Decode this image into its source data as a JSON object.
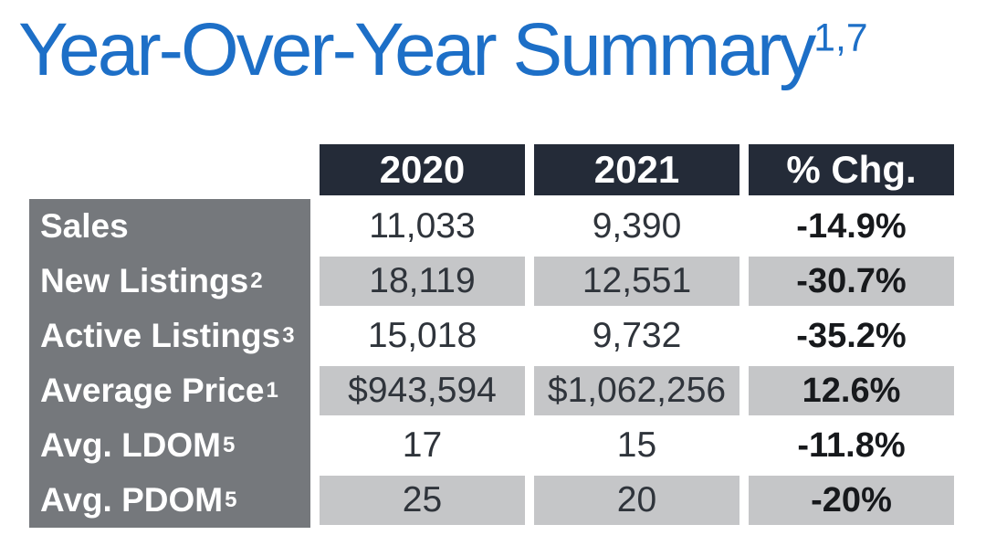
{
  "title": {
    "text": "Year-Over-Year Summary",
    "superscript": "1,7"
  },
  "colors": {
    "title_blue": "#1d6fc7",
    "header_bg": "#242b38",
    "header_text": "#ffffff",
    "row_label_bg": "#75787c",
    "row_label_text": "#ffffff",
    "stripe_gray": "#c5c6c8",
    "value_text": "#2f343b",
    "pct_change_text": "#17191c"
  },
  "chart_data": {
    "type": "table",
    "title": "Year-Over-Year Summary",
    "title_superscript": "1,7",
    "columns": [
      "2020",
      "2021",
      "% Chg."
    ],
    "rows": [
      {
        "label": "Sales",
        "footnote": "",
        "values": [
          "11,033",
          "9,390"
        ],
        "pct_change": "-14.9%"
      },
      {
        "label": "New Listings",
        "footnote": "2",
        "values": [
          "18,119",
          "12,551"
        ],
        "pct_change": "-30.7%"
      },
      {
        "label": "Active Listings",
        "footnote": "3",
        "values": [
          "15,018",
          "9,732"
        ],
        "pct_change": "-35.2%"
      },
      {
        "label": "Average Price",
        "footnote": "1",
        "values": [
          "$943,594",
          "$1,062,256"
        ],
        "pct_change": "12.6%"
      },
      {
        "label": "Avg. LDOM",
        "footnote": "5",
        "values": [
          "17",
          "15"
        ],
        "pct_change": "-11.8%"
      },
      {
        "label": "Avg. PDOM",
        "footnote": "5",
        "values": [
          "25",
          "20"
        ],
        "pct_change": "-20%"
      }
    ],
    "layout": {
      "striped_rows": [
        1,
        3,
        5
      ],
      "pct_change_bold": true
    }
  }
}
